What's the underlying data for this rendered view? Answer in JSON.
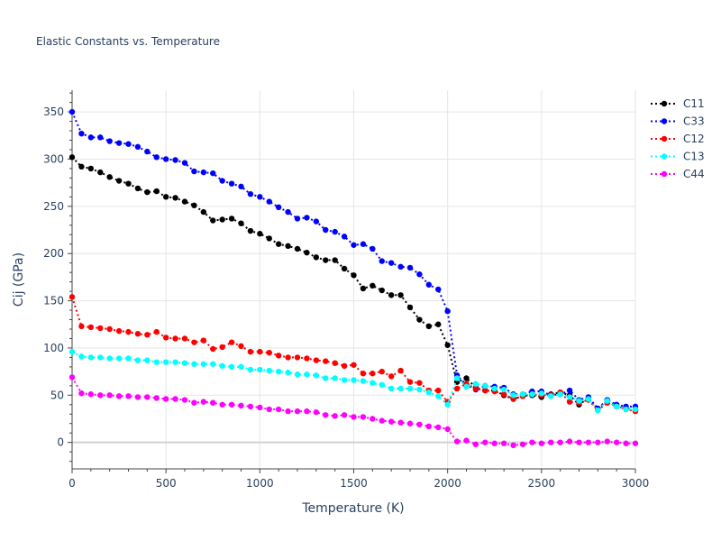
{
  "chart_data": {
    "type": "line",
    "title": "Elastic Constants vs. Temperature",
    "xlabel": "Temperature (K)",
    "ylabel": "Cij (GPa)",
    "xlim": [
      0,
      3000
    ],
    "ylim": [
      -28,
      373
    ],
    "xticks": [
      0,
      500,
      1000,
      1500,
      2000,
      2500,
      3000
    ],
    "yticks": [
      0,
      50,
      100,
      150,
      200,
      250,
      300,
      350
    ],
    "x_tick_labels": [
      "0",
      "500",
      "1000",
      "1500",
      "2000",
      "2500",
      "3000"
    ],
    "y_tick_labels": [
      "0",
      "50",
      "100",
      "150",
      "200",
      "250",
      "300",
      "350"
    ],
    "grid": true,
    "legend_position": "top-right",
    "x": [
      0,
      50,
      100,
      150,
      200,
      250,
      300,
      350,
      400,
      450,
      500,
      550,
      600,
      650,
      700,
      750,
      800,
      850,
      900,
      950,
      1000,
      1050,
      1100,
      1150,
      1200,
      1250,
      1300,
      1350,
      1400,
      1450,
      1500,
      1550,
      1600,
      1650,
      1700,
      1750,
      1800,
      1850,
      1900,
      1950,
      2000,
      2050,
      2100,
      2150,
      2200,
      2250,
      2300,
      2350,
      2400,
      2450,
      2500,
      2550,
      2600,
      2650,
      2700,
      2750,
      2800,
      2850,
      2900,
      2950,
      3000
    ],
    "series": [
      {
        "name": "C11",
        "color": "#000000",
        "values": [
          302,
          292,
          290,
          286,
          281,
          277,
          274,
          269,
          265,
          266,
          260,
          259,
          255,
          251,
          244,
          235,
          236,
          237,
          232,
          224,
          221,
          216,
          210,
          208,
          205,
          201,
          196,
          193,
          193,
          184,
          177,
          163,
          166,
          161,
          156,
          156,
          143,
          130,
          123,
          125,
          103,
          64,
          68,
          58,
          55,
          55,
          50,
          46,
          49,
          50,
          48,
          51,
          53,
          50,
          40,
          47,
          35,
          44,
          38,
          36,
          34
        ]
      },
      {
        "name": "C33",
        "color": "#0000ff",
        "values": [
          350,
          327,
          323,
          323,
          319,
          317,
          316,
          313,
          308,
          302,
          300,
          299,
          296,
          287,
          286,
          285,
          277,
          274,
          271,
          263,
          260,
          255,
          249,
          244,
          237,
          238,
          234,
          225,
          223,
          218,
          209,
          210,
          205,
          192,
          190,
          186,
          185,
          178,
          167,
          162,
          139,
          71,
          61,
          56,
          60,
          59,
          58,
          51,
          51,
          54,
          54,
          50,
          51,
          55,
          45,
          48,
          36,
          45,
          40,
          38,
          38
        ]
      },
      {
        "name": "C12",
        "color": "#ff0000",
        "values": [
          154,
          123,
          122,
          121,
          120,
          118,
          117,
          115,
          114,
          117,
          111,
          110,
          110,
          106,
          108,
          99,
          101,
          106,
          102,
          96,
          96,
          95,
          92,
          90,
          90,
          89,
          87,
          86,
          84,
          81,
          82,
          73,
          73,
          75,
          70,
          76,
          64,
          63,
          55,
          55,
          43,
          57,
          62,
          57,
          55,
          54,
          51,
          46,
          49,
          51,
          50,
          50,
          53,
          43,
          42,
          45,
          34,
          42,
          38,
          35,
          33
        ]
      },
      {
        "name": "C13",
        "color": "#00ffff",
        "values": [
          96,
          91,
          90,
          90,
          89,
          89,
          89,
          87,
          87,
          85,
          85,
          85,
          84,
          83,
          83,
          83,
          81,
          80,
          80,
          77,
          77,
          76,
          75,
          74,
          72,
          72,
          71,
          68,
          68,
          66,
          66,
          65,
          63,
          61,
          57,
          57,
          57,
          56,
          53,
          49,
          40,
          68,
          59,
          62,
          60,
          57,
          56,
          50,
          51,
          51,
          52,
          49,
          51,
          48,
          44,
          46,
          34,
          44,
          38,
          35,
          35
        ]
      },
      {
        "name": "C44",
        "color": "#ff00ff",
        "values": [
          69,
          52,
          51,
          50,
          50,
          49,
          49,
          48,
          48,
          47,
          46,
          46,
          45,
          42,
          43,
          42,
          40,
          40,
          39,
          38,
          37,
          35,
          35,
          33,
          33,
          33,
          32,
          29,
          28,
          29,
          27,
          27,
          25,
          23,
          22,
          21,
          20,
          19,
          17,
          16,
          14,
          1,
          2,
          -2,
          0,
          -1,
          -1,
          -3,
          -2,
          0,
          -1,
          0,
          0,
          1,
          0,
          0,
          0,
          1,
          0,
          -1,
          -1
        ]
      }
    ]
  }
}
